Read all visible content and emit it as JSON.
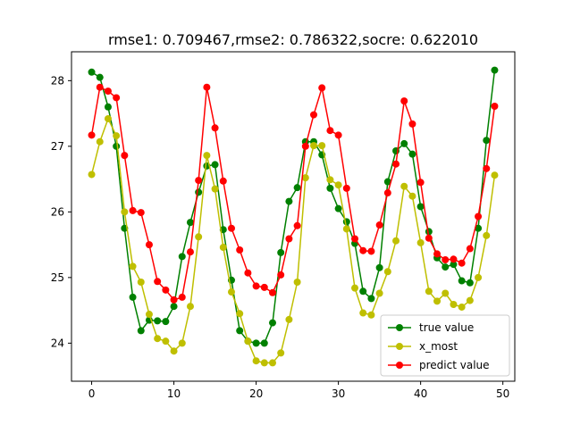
{
  "chart_data": {
    "type": "line",
    "title": "rmse1: 0.709467,rmse2: 0.786322,socre: 0.622010",
    "xlabel": "",
    "ylabel": "",
    "xlim": [
      -2.45,
      51.45
    ],
    "ylim": [
      23.42,
      28.44
    ],
    "xticks": [
      0,
      10,
      20,
      30,
      40,
      50
    ],
    "yticks": [
      24,
      25,
      26,
      27,
      28
    ],
    "grid": false,
    "legend_position": "lower right",
    "x": [
      0,
      1,
      2,
      3,
      4,
      5,
      6,
      7,
      8,
      9,
      10,
      11,
      12,
      13,
      14,
      15,
      16,
      17,
      18,
      19,
      20,
      21,
      22,
      23,
      24,
      25,
      26,
      27,
      28,
      29,
      30,
      31,
      32,
      33,
      34,
      35,
      36,
      37,
      38,
      39,
      40,
      41,
      42,
      43,
      44,
      45,
      46,
      47,
      48,
      49
    ],
    "series": [
      {
        "name": "true value",
        "color": "#008000",
        "values": [
          28.13,
          28.05,
          27.6,
          27.0,
          25.75,
          24.7,
          24.19,
          24.35,
          24.34,
          24.33,
          24.56,
          25.32,
          25.84,
          26.3,
          26.7,
          26.72,
          25.73,
          24.96,
          24.19,
          24.03,
          24.0,
          24.0,
          24.31,
          25.38,
          26.16,
          26.37,
          27.07,
          27.07,
          26.87,
          26.36,
          26.05,
          25.85,
          25.52,
          24.79,
          24.68,
          25.15,
          26.46,
          26.93,
          27.04,
          26.88,
          26.08,
          25.7,
          25.3,
          25.16,
          25.2,
          24.95,
          24.92,
          25.75,
          27.09,
          28.16
        ]
      },
      {
        "name": "x_most",
        "color": "#bfbf00",
        "values": [
          26.57,
          27.07,
          27.42,
          27.16,
          26.0,
          25.17,
          24.93,
          24.44,
          24.07,
          24.03,
          23.88,
          24.0,
          24.56,
          25.62,
          26.86,
          26.35,
          25.46,
          24.78,
          24.45,
          24.03,
          23.73,
          23.7,
          23.7,
          23.85,
          24.36,
          24.93,
          26.52,
          27.01,
          27.01,
          26.49,
          26.41,
          25.74,
          24.84,
          24.46,
          24.43,
          24.76,
          25.09,
          25.56,
          26.39,
          26.24,
          25.53,
          24.79,
          24.64,
          24.76,
          24.59,
          24.55,
          24.65,
          25.0,
          25.64,
          26.56
        ]
      },
      {
        "name": "predict value",
        "color": "#ff0000",
        "values": [
          27.17,
          27.9,
          27.84,
          27.74,
          26.86,
          26.02,
          25.99,
          25.5,
          24.94,
          24.81,
          24.66,
          24.7,
          25.39,
          26.48,
          27.9,
          27.28,
          26.47,
          25.75,
          25.42,
          25.07,
          24.87,
          24.85,
          24.77,
          25.04,
          25.59,
          25.79,
          27.0,
          27.48,
          27.89,
          27.24,
          27.17,
          26.36,
          25.59,
          25.41,
          25.4,
          25.8,
          26.29,
          26.73,
          27.69,
          27.34,
          26.45,
          25.6,
          25.36,
          25.27,
          25.28,
          25.22,
          25.44,
          25.93,
          26.66,
          27.61
        ]
      }
    ]
  }
}
